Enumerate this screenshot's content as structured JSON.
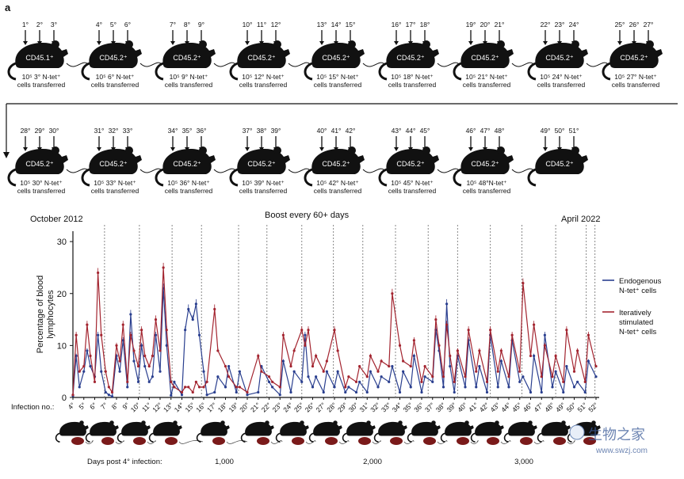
{
  "panel_label": "a",
  "transfer_rows": [
    [
      {
        "infections": [
          "1°",
          "2°",
          "3°"
        ],
        "mouse": "CD45.1⁺",
        "cells": "10⁵ 3° N-tet⁺",
        "sub": "cells transferred"
      },
      {
        "infections": [
          "4°",
          "5°",
          "6°"
        ],
        "mouse": "CD45.2⁺",
        "cells": "10⁵ 6° N-tet⁺",
        "sub": "cells transferred"
      },
      {
        "infections": [
          "7°",
          "8°",
          "9°"
        ],
        "mouse": "CD45.2⁺",
        "cells": "10⁵ 9° N-tet⁺",
        "sub": "cells transferred"
      },
      {
        "infections": [
          "10°",
          "11°",
          "12°"
        ],
        "mouse": "CD45.2⁺",
        "cells": "10⁵ 12° N-tet⁺",
        "sub": "cells transferred"
      },
      {
        "infections": [
          "13°",
          "14°",
          "15°"
        ],
        "mouse": "CD45.2⁺",
        "cells": "10⁵ 15° N-tet⁺",
        "sub": "cells transferred"
      },
      {
        "infections": [
          "16°",
          "17°",
          "18°"
        ],
        "mouse": "CD45.2⁺",
        "cells": "10⁵ 18° N-tet⁺",
        "sub": "cells transferred"
      },
      {
        "infections": [
          "19°",
          "20°",
          "21°"
        ],
        "mouse": "CD45.2⁺",
        "cells": "10⁵ 21° N-tet⁺",
        "sub": "cells transferred"
      },
      {
        "infections": [
          "22°",
          "23°",
          "24°"
        ],
        "mouse": "CD45.2⁺",
        "cells": "10⁵ 24° N-tet⁺",
        "sub": "cells transferred"
      },
      {
        "infections": [
          "25°",
          "26°",
          "27°"
        ],
        "mouse": "CD45.2⁺",
        "cells": "10⁵ 27° N-tet⁺",
        "sub": "cells transferred"
      }
    ],
    [
      {
        "infections": [
          "28°",
          "29°",
          "30°"
        ],
        "mouse": "CD45.2⁺",
        "cells": "10⁵ 30° N-tet⁺",
        "sub": "cells transferred"
      },
      {
        "infections": [
          "31°",
          "32°",
          "33°"
        ],
        "mouse": "CD45.2⁺",
        "cells": "10⁵ 33° N-tet⁺",
        "sub": "cells transferred"
      },
      {
        "infections": [
          "34°",
          "35°",
          "36°"
        ],
        "mouse": "CD45.2⁺",
        "cells": "10⁵ 36° N-tet⁺",
        "sub": "cells transferred"
      },
      {
        "infections": [
          "37°",
          "38°",
          "39°"
        ],
        "mouse": "CD45.2⁺",
        "cells": "10⁵ 39° N-tet⁺",
        "sub": "cells transferred"
      },
      {
        "infections": [
          "40°",
          "41°",
          "42°"
        ],
        "mouse": "CD45.2⁺",
        "cells": "10⁵ 42° N-tet⁺",
        "sub": "cells transferred"
      },
      {
        "infections": [
          "43°",
          "44°",
          "45°"
        ],
        "mouse": "CD45.2⁺",
        "cells": "10⁵ 45° N-tet⁺",
        "sub": "cells transferred"
      },
      {
        "infections": [
          "46°",
          "47°",
          "48°"
        ],
        "mouse": "CD45.2⁺",
        "cells": "10⁵ 48°N-tet⁺",
        "sub": "cells transferred"
      },
      {
        "infections": [
          "49°",
          "50°",
          "51°"
        ],
        "mouse": "CD45.2⁺",
        "cells": "",
        "sub": ""
      }
    ]
  ],
  "timeline": {
    "start_label": "October 2012",
    "center_label": "Boost every 60+ days",
    "end_label": "April 2022"
  },
  "chart_data": {
    "type": "line",
    "ylabel": "Percentage of blood lymphocytes",
    "ylim": [
      0,
      32
    ],
    "yticks": [
      0,
      10,
      20,
      30
    ],
    "xlabel_prefix": "Infection no.:",
    "infection_labels": [
      "4°",
      "5°",
      "6°",
      "7°",
      "8°",
      "9°",
      "10°",
      "11°",
      "12°",
      "13°",
      "14°",
      "15°",
      "16°",
      "17°",
      "18°",
      "19°",
      "20°",
      "21°",
      "22°",
      "23°",
      "24°",
      "25°",
      "26°",
      "27°",
      "28°",
      "29°",
      "30°",
      "31°",
      "32°",
      "33°",
      "34°",
      "35°",
      "36°",
      "37°",
      "38°",
      "39°",
      "40°",
      "41°",
      "42°",
      "43°",
      "44°",
      "45°",
      "46°",
      "47°",
      "48°",
      "49°",
      "50°",
      "51°",
      "52°"
    ],
    "days_label": "Days post 4° infection:",
    "days_ticks": [
      "1,000",
      "2,000",
      "3,000"
    ],
    "series": [
      {
        "name": "Endogenous N-tet⁺ cells",
        "color": "#2a3f8f",
        "points": [
          [
            0,
            0.3
          ],
          [
            0.3,
            8
          ],
          [
            0.6,
            2
          ],
          [
            1,
            5
          ],
          [
            1.3,
            9
          ],
          [
            1.6,
            6
          ],
          [
            2,
            4
          ],
          [
            2.3,
            12
          ],
          [
            2.6,
            5
          ],
          [
            3,
            1
          ],
          [
            3.3,
            0.5
          ],
          [
            3.6,
            0.2
          ],
          [
            4,
            8
          ],
          [
            4.3,
            5
          ],
          [
            4.6,
            11
          ],
          [
            5,
            2
          ],
          [
            5.3,
            16
          ],
          [
            5.6,
            7
          ],
          [
            6,
            3
          ],
          [
            6.3,
            10
          ],
          [
            6.6,
            6
          ],
          [
            7,
            3
          ],
          [
            7.3,
            4
          ],
          [
            7.6,
            12
          ],
          [
            8,
            5
          ],
          [
            8.3,
            21
          ],
          [
            8.6,
            10
          ],
          [
            9,
            0.4
          ],
          [
            9.3,
            3
          ],
          [
            10,
            0.5
          ],
          [
            10.3,
            13
          ],
          [
            10.6,
            17
          ],
          [
            11,
            15
          ],
          [
            11.3,
            18
          ],
          [
            11.6,
            12
          ],
          [
            12,
            5
          ],
          [
            12.3,
            0.5
          ],
          [
            13,
            1
          ],
          [
            13.3,
            4
          ],
          [
            14,
            2
          ],
          [
            14.3,
            6
          ],
          [
            15,
            1
          ],
          [
            15.3,
            5
          ],
          [
            16,
            0.5
          ],
          [
            17,
            1
          ],
          [
            17.3,
            6
          ],
          [
            18,
            3
          ],
          [
            18.3,
            2
          ],
          [
            19,
            0.5
          ],
          [
            19.3,
            7
          ],
          [
            20,
            1
          ],
          [
            20.3,
            5
          ],
          [
            21,
            3
          ],
          [
            21.3,
            12
          ],
          [
            21.6,
            4
          ],
          [
            22,
            2
          ],
          [
            22.3,
            4
          ],
          [
            23,
            1
          ],
          [
            23.3,
            5
          ],
          [
            24,
            2
          ],
          [
            24.3,
            5
          ],
          [
            25,
            1
          ],
          [
            25.3,
            2
          ],
          [
            26,
            1
          ],
          [
            26.3,
            3
          ],
          [
            27,
            1
          ],
          [
            27.3,
            5
          ],
          [
            28,
            2
          ],
          [
            28.3,
            4
          ],
          [
            29,
            3
          ],
          [
            29.3,
            6
          ],
          [
            30,
            1
          ],
          [
            30.3,
            5
          ],
          [
            31,
            2
          ],
          [
            31.3,
            8
          ],
          [
            32,
            1
          ],
          [
            32.3,
            4
          ],
          [
            33,
            3
          ],
          [
            33.3,
            13
          ],
          [
            33.6,
            9
          ],
          [
            34,
            2
          ],
          [
            34.3,
            18
          ],
          [
            34.6,
            6
          ],
          [
            35,
            1
          ],
          [
            35.3,
            8
          ],
          [
            36,
            2
          ],
          [
            36.3,
            11
          ],
          [
            37,
            2
          ],
          [
            37.3,
            6
          ],
          [
            38,
            1
          ],
          [
            38.3,
            12
          ],
          [
            39,
            2
          ],
          [
            39.3,
            7
          ],
          [
            40,
            2
          ],
          [
            40.3,
            11
          ],
          [
            41,
            3
          ],
          [
            41.3,
            4
          ],
          [
            42,
            1
          ],
          [
            42.3,
            8
          ],
          [
            43,
            1
          ],
          [
            43.3,
            12
          ],
          [
            44,
            2
          ],
          [
            44.3,
            5
          ],
          [
            45,
            1
          ],
          [
            45.3,
            6
          ],
          [
            46,
            2
          ],
          [
            46.3,
            3
          ],
          [
            47,
            1
          ],
          [
            47.3,
            7
          ],
          [
            48,
            4
          ]
        ]
      },
      {
        "name": "Iteratively stimulated N-tet⁺ cells",
        "color": "#a3242f",
        "points": [
          [
            0,
            0.5
          ],
          [
            0.3,
            12
          ],
          [
            0.6,
            5
          ],
          [
            1,
            6
          ],
          [
            1.3,
            14
          ],
          [
            1.6,
            8
          ],
          [
            2,
            3
          ],
          [
            2.3,
            24
          ],
          [
            2.6,
            12
          ],
          [
            3,
            5
          ],
          [
            3.3,
            2
          ],
          [
            3.6,
            1
          ],
          [
            4,
            10
          ],
          [
            4.3,
            7
          ],
          [
            4.6,
            14
          ],
          [
            5,
            3
          ],
          [
            5.3,
            12
          ],
          [
            5.6,
            9
          ],
          [
            6,
            6
          ],
          [
            6.3,
            13
          ],
          [
            6.6,
            8
          ],
          [
            7,
            6
          ],
          [
            7.3,
            8
          ],
          [
            7.6,
            15
          ],
          [
            8,
            9
          ],
          [
            8.3,
            25
          ],
          [
            8.6,
            13
          ],
          [
            9,
            3
          ],
          [
            9.3,
            2
          ],
          [
            10,
            1
          ],
          [
            10.3,
            2
          ],
          [
            10.6,
            2
          ],
          [
            11,
            1
          ],
          [
            11.3,
            3
          ],
          [
            11.6,
            2
          ],
          [
            12,
            2
          ],
          [
            12.3,
            3
          ],
          [
            13,
            17
          ],
          [
            13.3,
            9
          ],
          [
            14,
            6
          ],
          [
            14.3,
            4
          ],
          [
            15,
            2
          ],
          [
            15.3,
            2
          ],
          [
            16,
            1
          ],
          [
            17,
            8
          ],
          [
            17.3,
            5
          ],
          [
            18,
            4
          ],
          [
            18.3,
            3
          ],
          [
            19,
            2
          ],
          [
            19.3,
            12
          ],
          [
            20,
            6
          ],
          [
            20.3,
            9
          ],
          [
            21,
            13
          ],
          [
            21.3,
            10
          ],
          [
            21.6,
            13
          ],
          [
            22,
            6
          ],
          [
            22.3,
            8
          ],
          [
            23,
            5
          ],
          [
            23.3,
            7
          ],
          [
            24,
            13
          ],
          [
            24.3,
            9
          ],
          [
            25,
            2
          ],
          [
            25.3,
            4
          ],
          [
            26,
            3
          ],
          [
            26.3,
            6
          ],
          [
            27,
            4
          ],
          [
            27.3,
            8
          ],
          [
            28,
            5
          ],
          [
            28.3,
            7
          ],
          [
            29,
            6
          ],
          [
            29.3,
            20
          ],
          [
            30,
            10
          ],
          [
            30.3,
            7
          ],
          [
            31,
            6
          ],
          [
            31.3,
            11
          ],
          [
            32,
            3
          ],
          [
            32.3,
            6
          ],
          [
            33,
            4
          ],
          [
            33.3,
            15
          ],
          [
            33.6,
            10
          ],
          [
            34,
            4
          ],
          [
            34.3,
            14
          ],
          [
            34.6,
            8
          ],
          [
            35,
            3
          ],
          [
            35.3,
            9
          ],
          [
            36,
            4
          ],
          [
            36.3,
            13
          ],
          [
            37,
            5
          ],
          [
            37.3,
            9
          ],
          [
            38,
            3
          ],
          [
            38.3,
            13
          ],
          [
            39,
            5
          ],
          [
            39.3,
            9
          ],
          [
            40,
            4
          ],
          [
            40.3,
            12
          ],
          [
            41,
            5
          ],
          [
            41.3,
            22
          ],
          [
            42,
            8
          ],
          [
            42.3,
            14
          ],
          [
            43,
            4
          ],
          [
            43.3,
            10
          ],
          [
            44,
            4
          ],
          [
            44.3,
            8
          ],
          [
            45,
            3
          ],
          [
            45.3,
            13
          ],
          [
            46,
            5
          ],
          [
            46.3,
            9
          ],
          [
            47,
            3
          ],
          [
            47.3,
            12
          ],
          [
            48,
            6
          ]
        ]
      }
    ],
    "legend": "right"
  },
  "watermark": {
    "text": "生物之家",
    "url": "www.swzj.com"
  }
}
